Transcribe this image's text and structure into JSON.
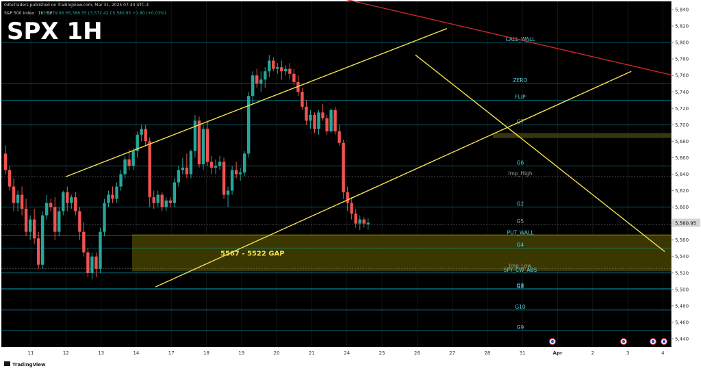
{
  "header": {
    "publisher_line": "0dteTraders published on TradingView.com, Mar 31, 2025 07:43 UTC-4",
    "symbol_line": "S&P 500 Index · 1h · SP",
    "ohlc": "O5,579.06  H5,586.55  L5,572.42  C5,580.95  +1.80 (+0.03%)"
  },
  "watermark_title": "SPX 1H",
  "footer": {
    "brand": "TradingView"
  },
  "colors": {
    "background": "#000000",
    "up": "#26a69a",
    "down": "#ef5350",
    "level": "#00bcd4",
    "level_label": "#4dd0e1",
    "trendline_yellow": "#f5e050",
    "trendline_red": "#c62828",
    "gap_fill": "#3d3a00"
  },
  "chart_data": {
    "type": "candlestick",
    "title": "SPX 1H",
    "ylim": [
      5430,
      5850
    ],
    "y_ticks": [
      5440,
      5460,
      5480,
      5500,
      5520,
      5540,
      5560,
      5580,
      5600,
      5620,
      5640,
      5660,
      5680,
      5700,
      5720,
      5740,
      5760,
      5780,
      5800,
      5820,
      5840
    ],
    "x_tick_labels": [
      "11",
      "12",
      "13",
      "14",
      "17",
      "18",
      "19",
      "20",
      "21",
      "24",
      "25",
      "26",
      "27",
      "28",
      "31",
      "Apr",
      "2",
      "3",
      "4"
    ],
    "last_price": "5,580.95",
    "levels": [
      {
        "name": "CALL_WALL",
        "value": 5800
      },
      {
        "name": "ZERO",
        "value": 5750
      },
      {
        "name": "FLIP",
        "value": 5730
      },
      {
        "name": "G7",
        "value": 5700
      },
      {
        "name": "G6",
        "value": 5650
      },
      {
        "name": "Imp_High",
        "value": 5637
      },
      {
        "name": "G2",
        "value": 5600
      },
      {
        "name": "G5",
        "value": 5579
      },
      {
        "name": "PUT_WALL",
        "value": 5565
      },
      {
        "name": "G4",
        "value": 5550
      },
      {
        "name": "Imp_Low",
        "value": 5525
      },
      {
        "name": "SPY_CW_ABS",
        "value": 5520
      },
      {
        "name": "G3",
        "value": 5501
      },
      {
        "name": "G8",
        "value": 5500
      },
      {
        "name": "G10",
        "value": 5475
      },
      {
        "name": "G9",
        "value": 5450
      }
    ],
    "gap_zone": {
      "label": "5567 - 5522 GAP",
      "from": 5522,
      "to": 5567
    },
    "resistance_zone": {
      "from": 5684,
      "to": 5690
    },
    "trendlines": [
      {
        "name": "channel-upper",
        "from": {
          "x": 1.0,
          "y": 5637
        },
        "to": {
          "x": 11.85,
          "y": 5817
        },
        "color": "yellow"
      },
      {
        "name": "channel-lower",
        "from": {
          "x": 3.55,
          "y": 5503
        },
        "to": {
          "x": 17.1,
          "y": 5765
        },
        "color": "yellow"
      },
      {
        "name": "descending",
        "from": {
          "x": 10.95,
          "y": 5785
        },
        "to": {
          "x": 18.05,
          "y": 5546
        },
        "color": "yellow"
      },
      {
        "name": "red-resistance",
        "from": {
          "x": 8.2,
          "y": 5860
        },
        "to": {
          "x": 18.8,
          "y": 5755
        },
        "color": "red"
      }
    ],
    "candles": [
      [
        5665,
        5675,
        5640,
        5645
      ],
      [
        5645,
        5650,
        5620,
        5625
      ],
      [
        5625,
        5635,
        5595,
        5605
      ],
      [
        5605,
        5620,
        5595,
        5615
      ],
      [
        5615,
        5625,
        5590,
        5598
      ],
      [
        5598,
        5610,
        5565,
        5570
      ],
      [
        5570,
        5590,
        5560,
        5585
      ],
      [
        5585,
        5598,
        5555,
        5562
      ],
      [
        5562,
        5570,
        5525,
        5530
      ],
      [
        5530,
        5595,
        5525,
        5590
      ],
      [
        5590,
        5615,
        5585,
        5605
      ],
      [
        5605,
        5610,
        5595,
        5600
      ],
      [
        5600,
        5612,
        5560,
        5570
      ],
      [
        5570,
        5600,
        5565,
        5595
      ],
      [
        5595,
        5620,
        5590,
        5618
      ],
      [
        5618,
        5625,
        5595,
        5605
      ],
      [
        5605,
        5615,
        5598,
        5612
      ],
      [
        5612,
        5618,
        5590,
        5595
      ],
      [
        5595,
        5600,
        5560,
        5570
      ],
      [
        5570,
        5582,
        5540,
        5545
      ],
      [
        5545,
        5550,
        5515,
        5520
      ],
      [
        5520,
        5545,
        5512,
        5540
      ],
      [
        5540,
        5545,
        5515,
        5525
      ],
      [
        5525,
        5575,
        5520,
        5570
      ],
      [
        5570,
        5610,
        5565,
        5605
      ],
      [
        5605,
        5620,
        5600,
        5615
      ],
      [
        5615,
        5625,
        5605,
        5610
      ],
      [
        5610,
        5630,
        5605,
        5625
      ],
      [
        5625,
        5645,
        5620,
        5640
      ],
      [
        5640,
        5662,
        5635,
        5658
      ],
      [
        5658,
        5670,
        5645,
        5650
      ],
      [
        5650,
        5672,
        5645,
        5668
      ],
      [
        5668,
        5692,
        5660,
        5688
      ],
      [
        5688,
        5700,
        5680,
        5695
      ],
      [
        5695,
        5700,
        5675,
        5680
      ],
      [
        5680,
        5685,
        5600,
        5612
      ],
      [
        5612,
        5620,
        5598,
        5605
      ],
      [
        5605,
        5620,
        5600,
        5615
      ],
      [
        5615,
        5618,
        5595,
        5600
      ],
      [
        5600,
        5612,
        5595,
        5608
      ],
      [
        5608,
        5612,
        5600,
        5605
      ],
      [
        5605,
        5635,
        5600,
        5630
      ],
      [
        5630,
        5650,
        5625,
        5645
      ],
      [
        5645,
        5660,
        5640,
        5648
      ],
      [
        5648,
        5665,
        5635,
        5640
      ],
      [
        5640,
        5670,
        5635,
        5668
      ],
      [
        5668,
        5712,
        5660,
        5705
      ],
      [
        5705,
        5710,
        5648,
        5652
      ],
      [
        5652,
        5700,
        5645,
        5695
      ],
      [
        5695,
        5705,
        5650,
        5655
      ],
      [
        5655,
        5662,
        5640,
        5648
      ],
      [
        5648,
        5658,
        5640,
        5650
      ],
      [
        5650,
        5662,
        5645,
        5655
      ],
      [
        5655,
        5660,
        5610,
        5615
      ],
      [
        5615,
        5625,
        5600,
        5620
      ],
      [
        5620,
        5650,
        5615,
        5645
      ],
      [
        5645,
        5655,
        5635,
        5640
      ],
      [
        5640,
        5648,
        5632,
        5642
      ],
      [
        5642,
        5668,
        5638,
        5665
      ],
      [
        5665,
        5740,
        5660,
        5735
      ],
      [
        5735,
        5765,
        5725,
        5760
      ],
      [
        5760,
        5768,
        5745,
        5750
      ],
      [
        5750,
        5765,
        5740,
        5755
      ],
      [
        5755,
        5770,
        5745,
        5765
      ],
      [
        5765,
        5785,
        5758,
        5778
      ],
      [
        5778,
        5782,
        5765,
        5768
      ],
      [
        5768,
        5775,
        5762,
        5770
      ],
      [
        5770,
        5778,
        5755,
        5765
      ],
      [
        5765,
        5772,
        5760,
        5768
      ],
      [
        5768,
        5775,
        5755,
        5762
      ],
      [
        5762,
        5768,
        5748,
        5752
      ],
      [
        5752,
        5760,
        5735,
        5740
      ],
      [
        5740,
        5745,
        5718,
        5722
      ],
      [
        5722,
        5730,
        5700,
        5705
      ],
      [
        5705,
        5718,
        5695,
        5712
      ],
      [
        5712,
        5715,
        5690,
        5695
      ],
      [
        5695,
        5718,
        5688,
        5715
      ],
      [
        5715,
        5725,
        5705,
        5708
      ],
      [
        5708,
        5712,
        5688,
        5692
      ],
      [
        5692,
        5720,
        5690,
        5718
      ],
      [
        5718,
        5722,
        5688,
        5692
      ],
      [
        5692,
        5700,
        5675,
        5678
      ],
      [
        5678,
        5682,
        5610,
        5618
      ],
      [
        5618,
        5625,
        5595,
        5605
      ],
      [
        5605,
        5612,
        5585,
        5592
      ],
      [
        5592,
        5598,
        5575,
        5580
      ],
      [
        5580,
        5590,
        5572,
        5585
      ],
      [
        5585,
        5588,
        5575,
        5580
      ],
      [
        5579.06,
        5586.55,
        5572.42,
        5580.95
      ]
    ]
  }
}
